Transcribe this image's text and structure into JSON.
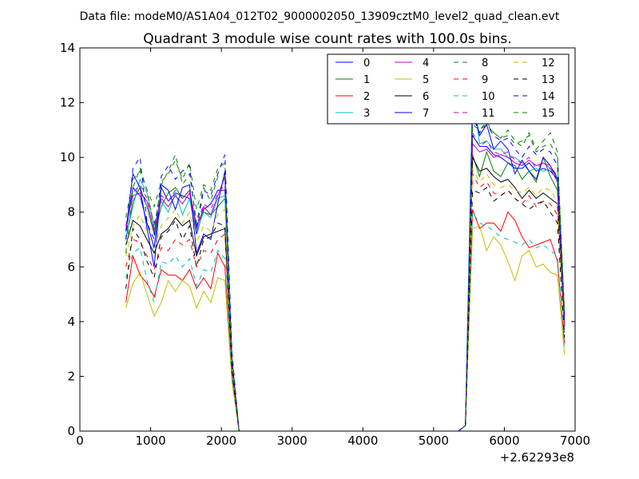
{
  "figure": {
    "suptitle": "Data file: modeM0/AS1A04_012T02_9000002050_13909cztM0_level2_quad_clean.evt"
  },
  "chart_data": {
    "type": "line",
    "title": "Quadrant 3 module wise count rates with 100.0s bins.",
    "xlabel": "",
    "ylabel": "",
    "x_offset_label": "+2.62293e8",
    "xlim": [
      0,
      7000
    ],
    "ylim": [
      0,
      14
    ],
    "xticks": [
      0,
      1000,
      2000,
      3000,
      4000,
      5000,
      6000,
      7000
    ],
    "yticks": [
      0,
      2,
      4,
      6,
      8,
      10,
      12,
      14
    ],
    "grid": false,
    "legend_position": "top-right",
    "legend_columns": 4,
    "x": [
      650,
      750,
      850,
      950,
      1050,
      1150,
      1250,
      1350,
      1450,
      1550,
      1650,
      1750,
      1850,
      1950,
      2050,
      2150,
      2250,
      2350,
      5350,
      5450,
      5550,
      5650,
      5750,
      5850,
      5950,
      6050,
      6150,
      6250,
      6350,
      6450,
      6550,
      6650,
      6750,
      6850
    ],
    "series": [
      {
        "name": "0",
        "style": "solid",
        "color": "#0000ff",
        "values": [
          7.3,
          8.9,
          8.6,
          7.6,
          6.7,
          8.9,
          8.4,
          8.7,
          8.6,
          8.5,
          7.2,
          8.1,
          8.3,
          8.8,
          8.8,
          2.6,
          0,
          0,
          0,
          0.2,
          10.8,
          10.4,
          10.4,
          10.1,
          10.0,
          9.8,
          9.6,
          9.6,
          9.8,
          9.5,
          9.6,
          9.5,
          9.2,
          3.6
        ]
      },
      {
        "name": "1",
        "style": "solid",
        "color": "#008000",
        "values": [
          7.0,
          8.4,
          8.9,
          8.2,
          7.2,
          8.2,
          8.7,
          8.9,
          8.5,
          8.8,
          7.5,
          8.0,
          7.9,
          8.2,
          8.5,
          2.5,
          0,
          0,
          0,
          0.2,
          10.1,
          9.3,
          10.2,
          9.5,
          9.3,
          9.8,
          9.7,
          9.2,
          9.5,
          9.1,
          10.0,
          9.3,
          8.8,
          3.9
        ]
      },
      {
        "name": "2",
        "style": "solid",
        "color": "#ff0000",
        "values": [
          4.7,
          6.4,
          5.7,
          5.4,
          4.9,
          5.9,
          5.7,
          5.7,
          5.5,
          5.9,
          5.2,
          5.6,
          5.2,
          6.5,
          6.0,
          1.9,
          0,
          0,
          0,
          0.2,
          8.1,
          7.4,
          7.6,
          7.6,
          7.3,
          8.0,
          7.7,
          7.1,
          6.7,
          6.8,
          6.9,
          7.0,
          6.2,
          3.2
        ]
      },
      {
        "name": "3",
        "style": "solid",
        "color": "#00bfbf",
        "values": [
          7.1,
          8.2,
          9.2,
          8.7,
          7.5,
          8.4,
          8.0,
          8.7,
          7.9,
          8.5,
          7.3,
          8.0,
          7.8,
          8.5,
          8.6,
          2.4,
          0,
          0,
          0,
          0.2,
          12.4,
          10.5,
          10.6,
          10.3,
          10.3,
          10.0,
          10.0,
          9.8,
          9.5,
          9.6,
          9.5,
          9.6,
          9.3,
          3.8
        ]
      },
      {
        "name": "4",
        "style": "solid",
        "color": "#bf00bf",
        "values": [
          7.5,
          8.6,
          8.7,
          8.4,
          7.3,
          8.5,
          8.2,
          8.6,
          8.3,
          8.7,
          7.4,
          8.2,
          7.9,
          8.6,
          9.3,
          2.6,
          0,
          0,
          0,
          0.2,
          10.5,
          10.2,
          10.3,
          10.0,
          10.1,
          10.0,
          9.8,
          9.7,
          9.9,
          9.7,
          9.8,
          9.6,
          9.1,
          3.7
        ]
      },
      {
        "name": "5",
        "style": "solid",
        "color": "#bfbf00",
        "values": [
          4.5,
          5.4,
          5.8,
          5.0,
          4.2,
          4.7,
          5.5,
          5.1,
          5.5,
          5.3,
          4.5,
          5.1,
          4.7,
          5.6,
          5.5,
          1.8,
          0,
          0,
          0,
          0.2,
          7.4,
          7.5,
          6.6,
          7.1,
          6.8,
          6.2,
          5.5,
          6.4,
          6.6,
          6.0,
          6.1,
          5.8,
          5.7,
          2.8
        ]
      },
      {
        "name": "6",
        "style": "solid",
        "color": "#000000",
        "values": [
          6.8,
          7.7,
          7.5,
          7.0,
          6.5,
          7.2,
          7.4,
          7.8,
          7.5,
          7.7,
          6.4,
          7.1,
          7.2,
          7.3,
          7.4,
          2.3,
          0,
          0,
          0,
          0.2,
          10.0,
          9.5,
          9.6,
          9.3,
          9.1,
          9.2,
          8.9,
          8.5,
          8.8,
          8.5,
          8.7,
          8.5,
          8.3,
          4.0
        ]
      },
      {
        "name": "7",
        "style": "solid",
        "color": "#0000ff",
        "values": [
          7.3,
          9.4,
          8.9,
          7.4,
          6.0,
          9.0,
          8.8,
          8.1,
          8.9,
          9.0,
          6.5,
          7.2,
          7.0,
          8.3,
          9.5,
          2.5,
          0,
          0,
          0,
          0.2,
          11.9,
          10.8,
          11.2,
          10.3,
          10.6,
          10.3,
          9.4,
          9.9,
          9.5,
          9.2,
          10.0,
          9.7,
          9.2,
          4.1
        ]
      },
      {
        "name": "8",
        "style": "dashed",
        "color": "#008000",
        "values": [
          7.8,
          9.2,
          9.5,
          8.8,
          8.2,
          9.1,
          9.4,
          9.9,
          9.2,
          9.8,
          8.1,
          9.0,
          8.8,
          9.6,
          9.8,
          2.8,
          0,
          0,
          0,
          0.2,
          11.4,
          11.0,
          11.2,
          10.9,
          10.7,
          10.8,
          10.5,
          10.6,
          10.8,
          10.2,
          10.4,
          10.5,
          10.0,
          4.3
        ]
      },
      {
        "name": "9",
        "style": "dashed",
        "color": "#ff0000",
        "values": [
          6.0,
          7.0,
          6.9,
          6.4,
          5.9,
          6.7,
          6.6,
          7.0,
          6.8,
          7.0,
          6.0,
          6.6,
          6.5,
          7.0,
          7.2,
          2.2,
          0,
          0,
          0,
          0.2,
          9.4,
          8.9,
          9.1,
          8.7,
          8.6,
          8.8,
          8.5,
          8.3,
          8.6,
          8.2,
          8.4,
          8.3,
          7.9,
          3.6
        ]
      },
      {
        "name": "10",
        "style": "dashed",
        "color": "#00bfbf",
        "values": [
          5.6,
          6.5,
          6.7,
          5.5,
          4.7,
          6.2,
          6.1,
          6.4,
          6.0,
          6.3,
          5.3,
          5.9,
          5.8,
          6.6,
          6.3,
          2.0,
          0,
          0,
          0,
          0.2,
          8.0,
          7.6,
          7.5,
          7.3,
          7.1,
          7.0,
          6.9,
          6.8,
          7.0,
          6.7,
          6.8,
          6.6,
          6.4,
          3.1
        ]
      },
      {
        "name": "11",
        "style": "dashed",
        "color": "#bf00bf",
        "values": [
          7.4,
          8.7,
          9.0,
          8.5,
          7.6,
          8.6,
          8.4,
          8.8,
          8.5,
          8.8,
          7.5,
          8.3,
          8.1,
          8.7,
          9.0,
          2.6,
          0,
          0,
          0,
          0.2,
          10.9,
          10.4,
          10.6,
          10.2,
          10.1,
          10.2,
          9.9,
          9.8,
          10.0,
          9.6,
          9.8,
          9.7,
          9.3,
          3.9
        ]
      },
      {
        "name": "12",
        "style": "dashed",
        "color": "#bfbf00",
        "values": [
          6.4,
          7.5,
          7.9,
          7.3,
          6.6,
          7.5,
          7.8,
          8.1,
          7.6,
          8.0,
          6.9,
          7.5,
          7.3,
          7.9,
          8.1,
          2.4,
          0,
          0,
          0,
          0.2,
          9.6,
          9.1,
          9.4,
          9.0,
          8.9,
          9.0,
          8.8,
          8.7,
          8.9,
          8.6,
          8.9,
          8.8,
          8.4,
          3.5
        ]
      },
      {
        "name": "13",
        "style": "dashed",
        "color": "#000000",
        "values": [
          5.2,
          7.4,
          7.0,
          6.2,
          5.6,
          7.1,
          7.3,
          7.7,
          7.0,
          7.5,
          6.0,
          7.0,
          7.1,
          7.6,
          7.5,
          2.2,
          0,
          0,
          0,
          0.2,
          8.8,
          8.7,
          8.9,
          8.4,
          8.6,
          8.8,
          8.5,
          8.3,
          8.1,
          8.3,
          8.4,
          8.0,
          7.6,
          3.4
        ]
      },
      {
        "name": "14",
        "style": "dashed",
        "color": "#0000ff",
        "values": [
          7.0,
          9.6,
          10.0,
          7.6,
          7.0,
          9.3,
          9.7,
          9.2,
          9.5,
          9.7,
          7.4,
          8.8,
          8.6,
          9.4,
          10.1,
          2.9,
          0,
          0,
          0,
          0.2,
          11.5,
          10.9,
          11.2,
          10.8,
          10.6,
          10.7,
          10.3,
          10.0,
          10.4,
          10.1,
          10.3,
          10.2,
          9.7,
          4.2
        ]
      },
      {
        "name": "15",
        "style": "dashed",
        "color": "#008000",
        "values": [
          6.5,
          8.9,
          9.6,
          8.8,
          7.4,
          9.0,
          9.5,
          10.1,
          9.0,
          9.4,
          7.6,
          8.9,
          8.4,
          9.3,
          9.2,
          2.7,
          0,
          0,
          0,
          0.2,
          11.2,
          11.0,
          11.3,
          10.9,
          10.7,
          11.0,
          10.6,
          10.4,
          10.9,
          10.3,
          10.6,
          10.9,
          10.2,
          4.4
        ]
      }
    ]
  }
}
